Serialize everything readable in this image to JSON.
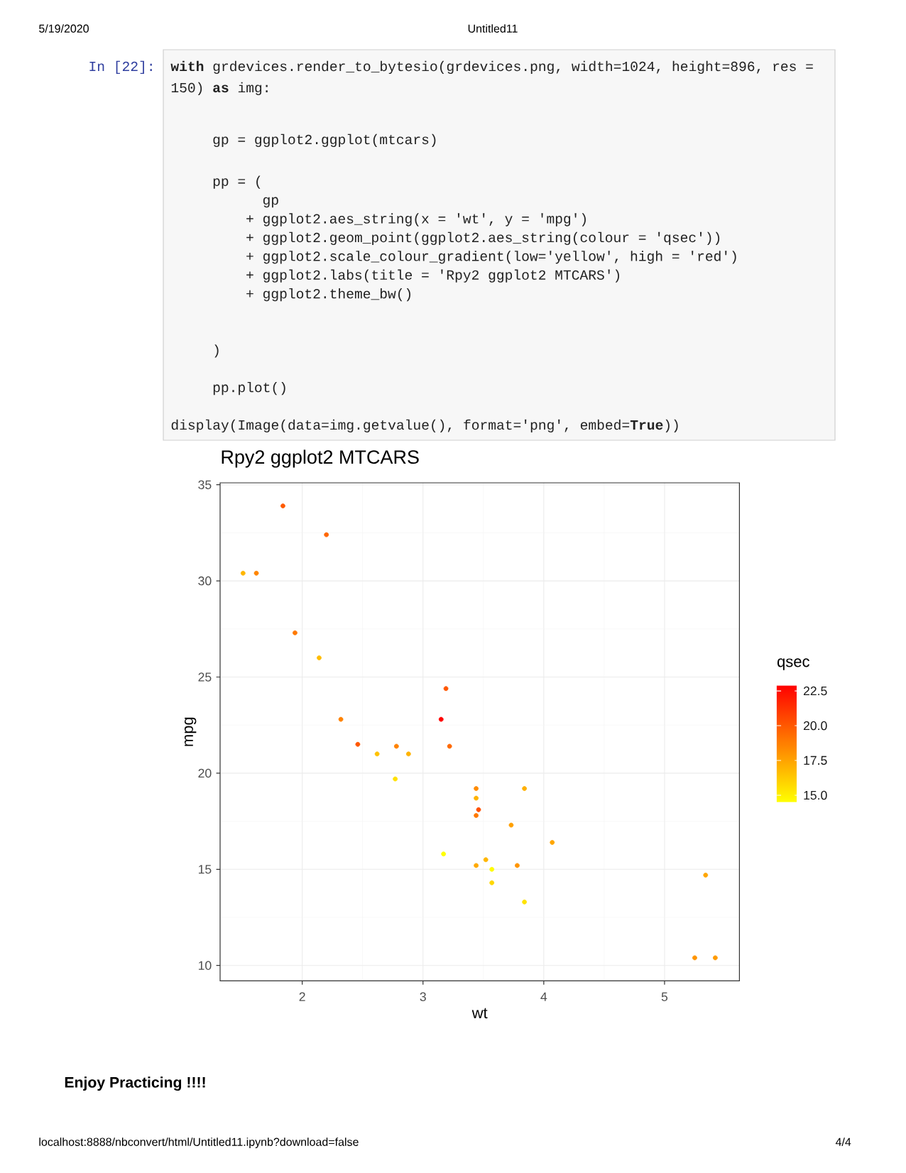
{
  "chart_data": {
    "type": "scatter",
    "title": "Rpy2 ggplot2 MTCARS",
    "xlabel": "wt",
    "ylabel": "mpg",
    "clabel": "qsec",
    "x": [
      2.62,
      2.88,
      2.32,
      3.22,
      3.44,
      3.46,
      3.57,
      3.19,
      3.15,
      3.44,
      3.44,
      4.07,
      3.73,
      3.78,
      5.25,
      5.42,
      5.34,
      2.2,
      1.62,
      1.84,
      2.46,
      3.52,
      3.44,
      3.84,
      3.84,
      1.94,
      2.14,
      1.51,
      3.17,
      2.77,
      3.57,
      2.78
    ],
    "values": [
      21.0,
      21.0,
      22.8,
      21.4,
      18.7,
      18.1,
      14.3,
      24.4,
      22.8,
      19.2,
      17.8,
      16.4,
      17.3,
      15.2,
      10.4,
      10.4,
      14.7,
      32.4,
      30.4,
      33.9,
      21.5,
      15.5,
      15.2,
      13.3,
      19.2,
      27.3,
      26.0,
      30.4,
      15.8,
      19.7,
      15.0,
      21.4
    ],
    "cvalues": [
      16.5,
      17.0,
      18.6,
      19.4,
      17.0,
      20.2,
      15.8,
      20.0,
      22.9,
      18.3,
      18.9,
      17.4,
      17.6,
      18.0,
      18.0,
      17.8,
      17.4,
      19.5,
      18.5,
      19.9,
      20.0,
      16.9,
      17.3,
      15.4,
      17.1,
      18.9,
      16.7,
      16.9,
      14.5,
      15.5,
      14.6,
      18.6
    ],
    "xlim": [
      1.32,
      5.62
    ],
    "ylim": [
      9.2,
      35.1
    ],
    "xticks": [
      2,
      3,
      4,
      5
    ],
    "yticks": [
      10,
      15,
      20,
      25,
      30,
      35
    ],
    "clim": [
      14.5,
      22.9
    ],
    "cticks": [
      {
        "value": 15,
        "label": "15.0"
      },
      17.5,
      {
        "value": 20,
        "label": "20.0"
      },
      22.5
    ],
    "grid": true,
    "marker": "circle",
    "annotations": [
      "5/19/2020",
      "Untitled11",
      "In [22]:",
      "**with** grdevices.render_to_bytesio(grdevices.png, width=1024, height=896, res =",
      "150) **as** img:",
      "    gp = ggplot2.ggplot(mtcars)",
      "    pp = (",
      "          gp",
      "        + ggplot2.aes_string(x = 'wt', y = 'mpg')",
      "        + ggplot2.geom_point(ggplot2.aes_string(colour = 'qsec'))",
      "        + ggplot2.scale_colour_gradient(low='yellow', high = 'red')",
      "        + ggplot2.labs(title = 'Rpy2 ggplot2 MTCARS')",
      "        + ggplot2.theme_bw()",
      "    )",
      "    pp.plot()",
      "display(Image(data=img.getvalue(), format='png', embed=**True**))",
      "Enjoy Practicing !!!!",
      "localhost:8888/nbconvert/html/Untitled11.ipynb?download=false",
      "4/4"
    ]
  }
}
